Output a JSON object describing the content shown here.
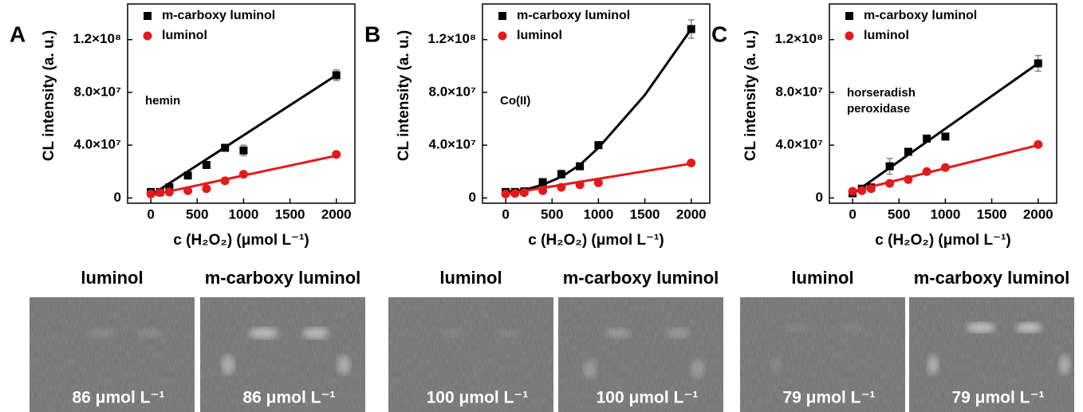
{
  "chart_data": [
    {
      "type": "scatter",
      "label": "A",
      "annotation": "hemin",
      "x_label": "c (H₂O₂) (μmol L⁻¹)",
      "y_label": "CL intensity (a. u.)",
      "xlim": [
        -250,
        2200
      ],
      "ylim": [
        -4000000,
        147000000
      ],
      "xticks": [
        0,
        500,
        1000,
        1500,
        2000
      ],
      "yticks": [
        0,
        {
          "value": 40000000,
          "label": "4.0×10⁷"
        },
        {
          "value": 80000000,
          "label": "8.0×10⁷"
        },
        {
          "value": 120000000,
          "label": "1.2×10⁸"
        }
      ],
      "x": [
        0,
        100,
        200,
        400,
        600,
        800,
        1000,
        2000
      ],
      "series": [
        {
          "name": "m-carboxy luminol",
          "color": "#000000",
          "marker": "square",
          "values": [
            4500000,
            4500000,
            8000000,
            17000000,
            25000000,
            38000000,
            36000000,
            93000000
          ],
          "errors": [
            500000,
            500000,
            800000,
            800000,
            1000000,
            2000000,
            4000000,
            4000000
          ],
          "fit": {
            "x": [
              0,
              2000
            ],
            "values": [
              2000000,
              93000000
            ]
          }
        },
        {
          "name": "luminol",
          "color": "#e31a1c",
          "marker": "circle",
          "values": [
            3000000,
            4000000,
            4500000,
            5500000,
            7000000,
            13000000,
            18000000,
            33000000
          ],
          "errors": [
            500000,
            500000,
            500000,
            500000,
            1500000,
            800000,
            800000,
            800000
          ],
          "fit": {
            "x": [
              0,
              2000
            ],
            "values": [
              2000000,
              32000000
            ]
          }
        }
      ]
    },
    {
      "type": "scatter",
      "label": "B",
      "annotation": "Co(II)",
      "x_label": "c (H₂O₂) (μmol L⁻¹)",
      "y_label": "CL intensity (a. u.)",
      "xlim": [
        -250,
        2200
      ],
      "ylim": [
        -4000000,
        147000000
      ],
      "xticks": [
        0,
        500,
        1000,
        1500,
        2000
      ],
      "yticks": [
        0,
        {
          "value": 40000000,
          "label": "4.0×10⁷"
        },
        {
          "value": 80000000,
          "label": "8.0×10⁷"
        },
        {
          "value": 120000000,
          "label": "1.2×10⁸"
        }
      ],
      "x": [
        0,
        100,
        200,
        400,
        600,
        800,
        1000,
        2000
      ],
      "series": [
        {
          "name": "m-carboxy luminol",
          "color": "#000000",
          "marker": "square",
          "values": [
            4500000,
            4500000,
            5000000,
            12000000,
            18000000,
            24000000,
            40000000,
            128000000
          ],
          "errors": [
            500000,
            500000,
            500000,
            1500000,
            3000000,
            2000000,
            1000000,
            7000000
          ],
          "fit": {
            "x": [
              0,
              200,
              400,
              600,
              800,
              1000,
              1500,
              2000
            ],
            "values": [
              4500000,
              6000000,
              10000000,
              16000000,
              25000000,
              38000000,
              78000000,
              128000000
            ]
          }
        },
        {
          "name": "luminol",
          "color": "#e31a1c",
          "marker": "circle",
          "values": [
            3000000,
            3500000,
            4000000,
            5500000,
            8000000,
            10000000,
            11500000,
            26500000
          ],
          "errors": [
            500000,
            500000,
            500000,
            500000,
            800000,
            800000,
            800000,
            800000
          ],
          "fit": {
            "x": [
              0,
              2000
            ],
            "values": [
              3000000,
              26000000
            ]
          }
        }
      ]
    },
    {
      "type": "scatter",
      "label": "C",
      "annotation": "horseradish\nperoxidase",
      "x_label": "c (H₂O₂) (μmol L⁻¹)",
      "y_label": "CL intensity (a. u.)",
      "xlim": [
        -250,
        2200
      ],
      "ylim": [
        -4000000,
        147000000
      ],
      "xticks": [
        0,
        500,
        1000,
        1500,
        2000
      ],
      "yticks": [
        0,
        {
          "value": 40000000,
          "label": "4.0×10⁷"
        },
        {
          "value": 80000000,
          "label": "8.0×10⁷"
        },
        {
          "value": 120000000,
          "label": "1.2×10⁸"
        }
      ],
      "x": [
        0,
        100,
        200,
        400,
        600,
        800,
        1000,
        2000
      ],
      "series": [
        {
          "name": "m-carboxy luminol",
          "color": "#000000",
          "marker": "square",
          "values": [
            3500000,
            7000000,
            8000000,
            24000000,
            35000000,
            45000000,
            46500000,
            102000000
          ],
          "errors": [
            800000,
            800000,
            2000000,
            6000000,
            1000000,
            2000000,
            1500000,
            6000000
          ],
          "fit": {
            "x": [
              0,
              2000
            ],
            "values": [
              3000000,
              102000000
            ]
          }
        },
        {
          "name": "luminol",
          "color": "#e31a1c",
          "marker": "circle",
          "values": [
            5000000,
            5500000,
            7000000,
            11000000,
            14000000,
            20000000,
            23000000,
            40500000
          ],
          "errors": [
            500000,
            500000,
            500000,
            500000,
            2500000,
            800000,
            800000,
            800000
          ],
          "fit": {
            "x": [
              0,
              2000
            ],
            "values": [
              5000000,
              40000000
            ]
          }
        }
      ]
    }
  ],
  "images": [
    {
      "labels": [
        "luminol",
        "m-carboxy luminol"
      ],
      "concentration": [
        "86 μmol L⁻¹",
        "86 μmol L⁻¹"
      ]
    },
    {
      "labels": [
        "luminol",
        "m-carboxy luminol"
      ],
      "concentration": [
        "100 μmol L⁻¹",
        "100 μmol L⁻¹"
      ]
    },
    {
      "labels": [
        "luminol",
        "m-carboxy luminol"
      ],
      "concentration": [
        "79 μmol L⁻¹",
        "79 μmol L⁻¹"
      ]
    }
  ]
}
